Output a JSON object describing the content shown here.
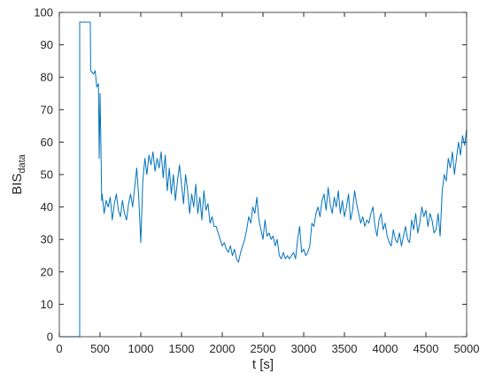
{
  "chart_data": {
    "type": "line",
    "xlabel": "t [s]",
    "ylabel": "BIS",
    "ylabel_subscript": "data",
    "xlim": [
      0,
      5000
    ],
    "ylim": [
      0,
      100
    ],
    "xticks": [
      0,
      500,
      1000,
      1500,
      2000,
      2500,
      3000,
      3500,
      4000,
      4500,
      5000
    ],
    "yticks": [
      0,
      10,
      20,
      30,
      40,
      50,
      60,
      70,
      80,
      90,
      100
    ],
    "grid": false,
    "series": [
      {
        "color": "#0072bd",
        "x": [
          0,
          250,
          250,
          380,
          385,
          420,
          440,
          460,
          480,
          490,
          500,
          510,
          520,
          525,
          550,
          575,
          600,
          625,
          650,
          675,
          700,
          725,
          750,
          775,
          800,
          825,
          850,
          875,
          900,
          925,
          950,
          975,
          1000,
          1025,
          1050,
          1075,
          1100,
          1125,
          1150,
          1175,
          1200,
          1225,
          1250,
          1275,
          1300,
          1325,
          1350,
          1375,
          1400,
          1425,
          1450,
          1475,
          1500,
          1525,
          1550,
          1575,
          1600,
          1625,
          1650,
          1675,
          1700,
          1725,
          1750,
          1775,
          1800,
          1825,
          1850,
          1875,
          1900,
          1925,
          1950,
          1975,
          2000,
          2025,
          2050,
          2075,
          2100,
          2125,
          2150,
          2175,
          2200,
          2225,
          2250,
          2275,
          2300,
          2325,
          2350,
          2375,
          2400,
          2425,
          2450,
          2475,
          2500,
          2525,
          2550,
          2575,
          2600,
          2625,
          2650,
          2675,
          2700,
          2725,
          2750,
          2775,
          2800,
          2825,
          2850,
          2875,
          2900,
          2925,
          2950,
          2975,
          3000,
          3025,
          3050,
          3075,
          3100,
          3125,
          3150,
          3175,
          3200,
          3225,
          3250,
          3275,
          3300,
          3325,
          3350,
          3375,
          3400,
          3425,
          3450,
          3475,
          3500,
          3525,
          3550,
          3575,
          3600,
          3625,
          3650,
          3675,
          3700,
          3725,
          3750,
          3775,
          3800,
          3825,
          3850,
          3875,
          3900,
          3925,
          3950,
          3975,
          4000,
          4025,
          4050,
          4075,
          4100,
          4125,
          4150,
          4175,
          4200,
          4225,
          4250,
          4275,
          4300,
          4325,
          4350,
          4375,
          4400,
          4425,
          4450,
          4475,
          4500,
          4525,
          4550,
          4575,
          4600,
          4625,
          4650,
          4675,
          4700,
          4725,
          4750,
          4775,
          4800,
          4825,
          4850,
          4875,
          4900,
          4925,
          4950,
          4975,
          5000
        ],
        "values": [
          0,
          0,
          97,
          97,
          82,
          81,
          82,
          77,
          78,
          55,
          75,
          60,
          42,
          44,
          38,
          42,
          40,
          43,
          36,
          41,
          44,
          39,
          37,
          42,
          38,
          36,
          41,
          44,
          40,
          46,
          52,
          43,
          29,
          48,
          55,
          50,
          56,
          53,
          57,
          51,
          55,
          52,
          57,
          49,
          56,
          45,
          52,
          44,
          50,
          42,
          48,
          53,
          47,
          41,
          50,
          45,
          38,
          44,
          40,
          47,
          38,
          43,
          36,
          45,
          39,
          41,
          35,
          37,
          34,
          34,
          32,
          30,
          28,
          29,
          27,
          26,
          28,
          25,
          27,
          24,
          23,
          26,
          28,
          30,
          33,
          37,
          35,
          40,
          38,
          43,
          36,
          33,
          30,
          36,
          31,
          32,
          30,
          31,
          28,
          30,
          25,
          24,
          26,
          24,
          25,
          24,
          25,
          26,
          24,
          30,
          34,
          26,
          27,
          25,
          26,
          28,
          35,
          34,
          38,
          40,
          37,
          42,
          44,
          39,
          46,
          41,
          38,
          43,
          40,
          45,
          38,
          42,
          37,
          40,
          44,
          36,
          39,
          45,
          41,
          38,
          35,
          37,
          34,
          36,
          35,
          38,
          40,
          34,
          31,
          36,
          38,
          33,
          35,
          31,
          29,
          28,
          33,
          30,
          29,
          32,
          28,
          31,
          34,
          30,
          29,
          36,
          33,
          38,
          32,
          35,
          40,
          37,
          39,
          34,
          38,
          36,
          32,
          33,
          38,
          31,
          45,
          50,
          48,
          55,
          52,
          57,
          50,
          55,
          60,
          56,
          62,
          59,
          64
        ]
      }
    ]
  }
}
